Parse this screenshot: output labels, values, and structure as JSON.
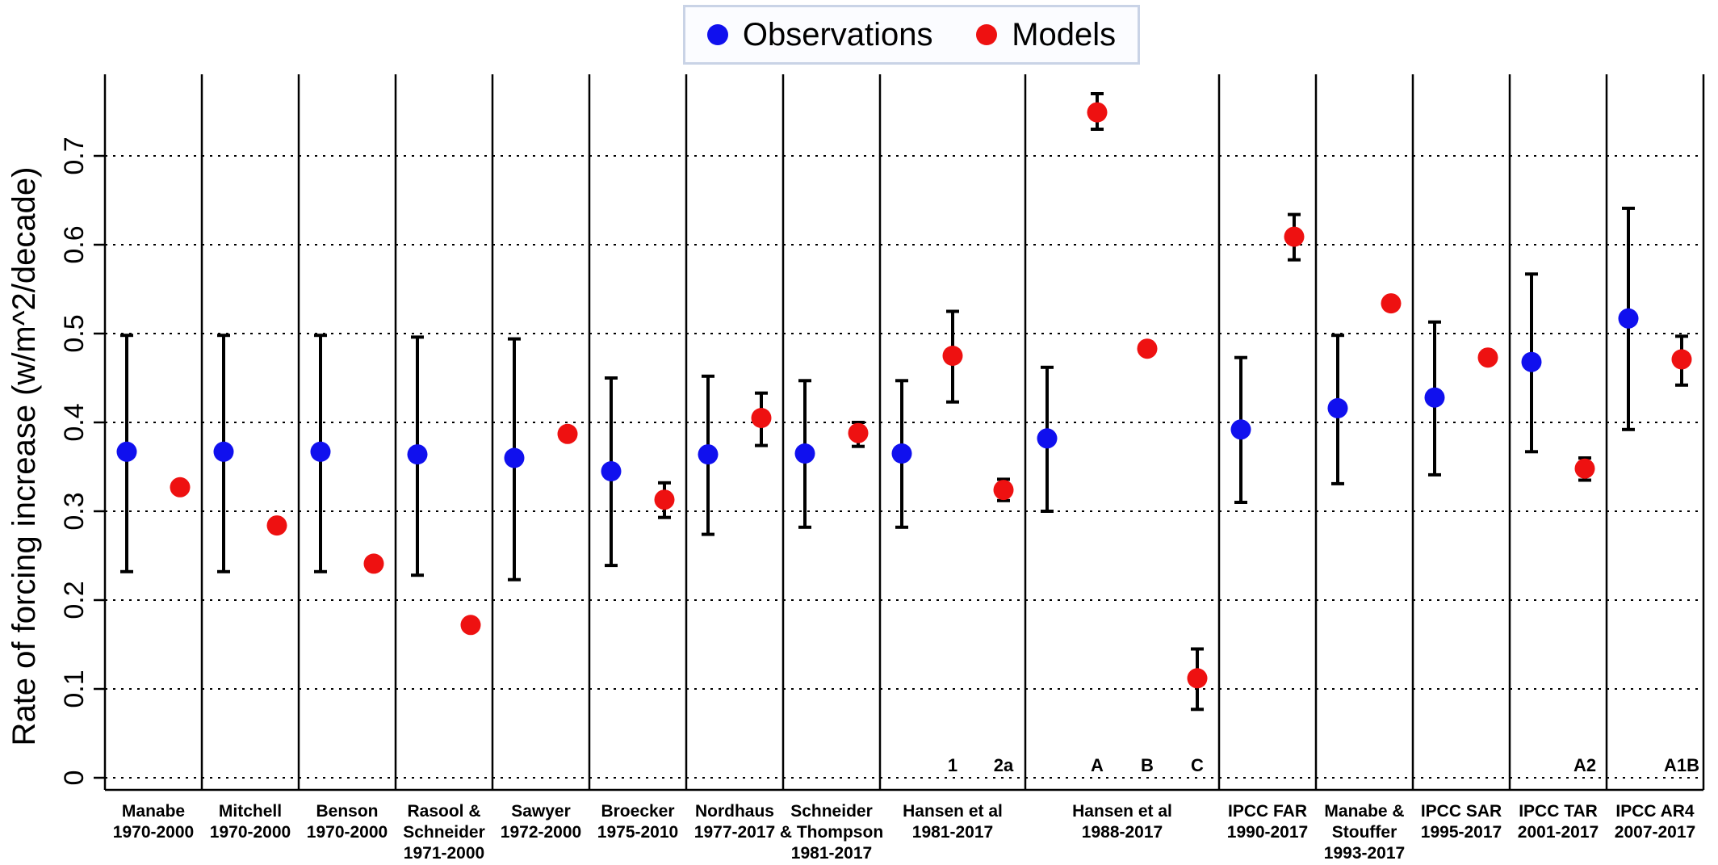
{
  "chart_data": {
    "type": "scatter",
    "title": "",
    "xlabel": "",
    "ylabel": "Rate of forcing increase (w/m^2/decade)",
    "ylim": [
      0,
      0.78
    ],
    "yticks": [
      {
        "value": 0,
        "label": "0"
      },
      {
        "value": 0.1,
        "label": "0.1"
      },
      {
        "value": 0.2,
        "label": "0.2"
      },
      {
        "value": 0.3,
        "label": "0.3"
      },
      {
        "value": 0.4,
        "label": "0.4"
      },
      {
        "value": 0.5,
        "label": "0.5"
      },
      {
        "value": 0.6,
        "label": "0.6"
      },
      {
        "value": 0.7,
        "label": "0.7"
      }
    ],
    "grid": "horizontal dotted",
    "legend": {
      "placement": "top-center",
      "entries": [
        {
          "label": "Observations",
          "color": "#1010ee"
        },
        {
          "label": "Models",
          "color": "#ee1111"
        }
      ]
    },
    "groups": [
      {
        "label": "Manabe\n1970-2000",
        "slots": 2,
        "observation": {
          "value": 0.367,
          "low": 0.232,
          "high": 0.498
        },
        "models": [
          {
            "value": 0.327,
            "low": null,
            "high": null,
            "label": ""
          }
        ]
      },
      {
        "label": "Mitchell\n1970-2000",
        "slots": 2,
        "observation": {
          "value": 0.367,
          "low": 0.232,
          "high": 0.498
        },
        "models": [
          {
            "value": 0.284,
            "low": null,
            "high": null,
            "label": ""
          }
        ]
      },
      {
        "label": "Benson\n1970-2000",
        "slots": 2,
        "observation": {
          "value": 0.367,
          "low": 0.232,
          "high": 0.498
        },
        "models": [
          {
            "value": 0.241,
            "low": 0.234,
            "high": 0.247,
            "label": ""
          }
        ]
      },
      {
        "label": "Rasool &\nSchneider\n1971-2000",
        "slots": 2,
        "observation": {
          "value": 0.364,
          "low": 0.228,
          "high": 0.496
        },
        "models": [
          {
            "value": 0.172,
            "low": null,
            "high": null,
            "label": ""
          }
        ]
      },
      {
        "label": "Sawyer\n1972-2000",
        "slots": 2,
        "observation": {
          "value": 0.36,
          "low": 0.223,
          "high": 0.494
        },
        "models": [
          {
            "value": 0.387,
            "low": null,
            "high": null,
            "label": ""
          }
        ]
      },
      {
        "label": "Broecker\n1975-2010",
        "slots": 2,
        "observation": {
          "value": 0.345,
          "low": 0.239,
          "high": 0.45
        },
        "models": [
          {
            "value": 0.313,
            "low": 0.293,
            "high": 0.332,
            "label": ""
          }
        ]
      },
      {
        "label": "Nordhaus\n1977-2017",
        "slots": 2,
        "observation": {
          "value": 0.364,
          "low": 0.274,
          "high": 0.452
        },
        "models": [
          {
            "value": 0.405,
            "low": 0.374,
            "high": 0.433,
            "label": ""
          }
        ]
      },
      {
        "label": "Schneider\n& Thompson\n1981-2017",
        "slots": 2,
        "observation": {
          "value": 0.365,
          "low": 0.282,
          "high": 0.447
        },
        "models": [
          {
            "value": 0.388,
            "low": 0.373,
            "high": 0.4,
            "label": ""
          }
        ]
      },
      {
        "label": "Hansen et al\n1981-2017",
        "slots": 3,
        "observation": {
          "value": 0.365,
          "low": 0.282,
          "high": 0.447
        },
        "models": [
          {
            "value": 0.475,
            "low": 0.423,
            "high": 0.525,
            "label": "1"
          },
          {
            "value": 0.324,
            "low": 0.312,
            "high": 0.336,
            "label": "2a"
          }
        ]
      },
      {
        "label": "Hansen et al\n1988-2017",
        "slots": 4,
        "observation": {
          "value": 0.382,
          "low": 0.3,
          "high": 0.462
        },
        "models": [
          {
            "value": 0.749,
            "low": 0.73,
            "high": 0.77,
            "label": "A"
          },
          {
            "value": 0.483,
            "low": null,
            "high": null,
            "label": "B"
          },
          {
            "value": 0.112,
            "low": 0.077,
            "high": 0.145,
            "label": "C"
          }
        ]
      },
      {
        "label": "IPCC FAR\n1990-2017",
        "slots": 2,
        "observation": {
          "value": 0.392,
          "low": 0.31,
          "high": 0.473
        },
        "models": [
          {
            "value": 0.609,
            "low": 0.583,
            "high": 0.634,
            "label": ""
          }
        ]
      },
      {
        "label": "Manabe &\nStouffer\n1993-2017",
        "slots": 2,
        "observation": {
          "value": 0.416,
          "low": 0.331,
          "high": 0.498
        },
        "models": [
          {
            "value": 0.534,
            "low": null,
            "high": null,
            "label": ""
          }
        ]
      },
      {
        "label": "IPCC SAR\n1995-2017",
        "slots": 2,
        "observation": {
          "value": 0.428,
          "low": 0.341,
          "high": 0.513
        },
        "models": [
          {
            "value": 0.473,
            "low": null,
            "high": null,
            "label": ""
          }
        ]
      },
      {
        "label": "IPCC TAR\n2001-2017",
        "slots": 2,
        "observation": {
          "value": 0.468,
          "low": 0.367,
          "high": 0.567
        },
        "models": [
          {
            "value": 0.348,
            "low": 0.335,
            "high": 0.36,
            "label": "A2"
          }
        ]
      },
      {
        "label": "IPCC AR4\n2007-2017",
        "slots": 2,
        "observation": {
          "value": 0.517,
          "low": 0.392,
          "high": 0.641
        },
        "models": [
          {
            "value": 0.471,
            "low": 0.442,
            "high": 0.497,
            "label": "A1B"
          }
        ]
      }
    ]
  }
}
